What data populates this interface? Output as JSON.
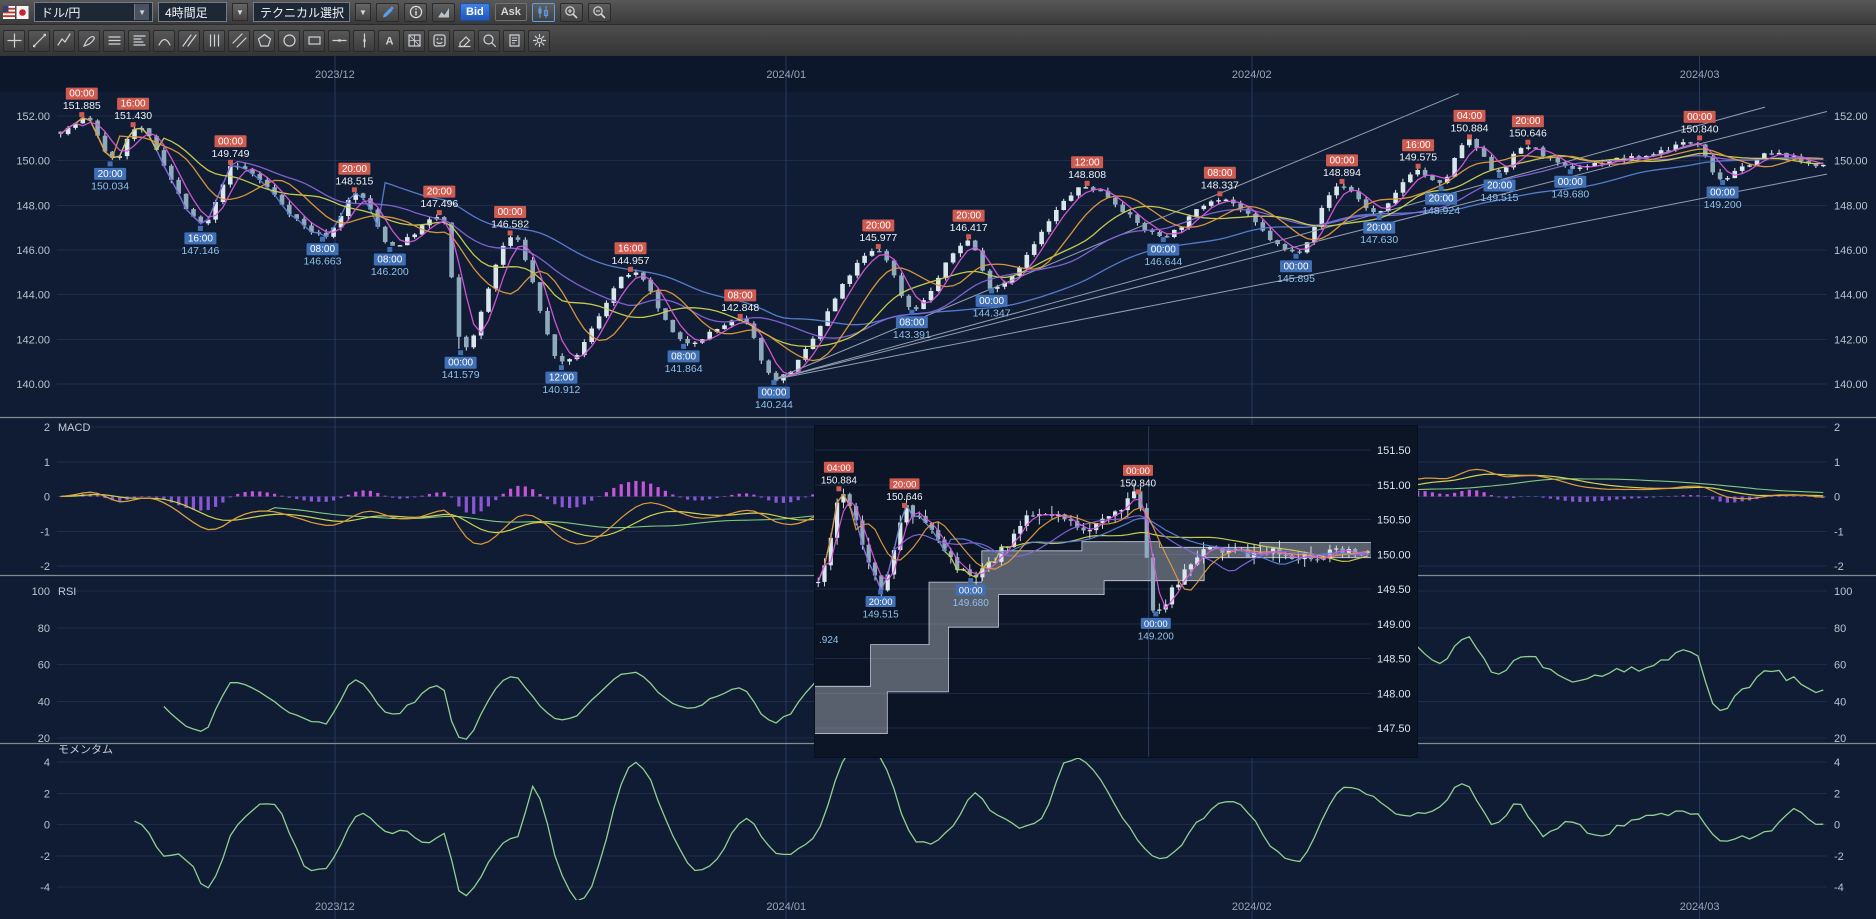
{
  "toolbar": {
    "pair_selector": {
      "value": "ドル/円",
      "flag": "us-jp-flag"
    },
    "timeframe_selector": {
      "value": "4時間足"
    },
    "technical_selector": {
      "value": "テクニカル選択"
    },
    "bid_label": "Bid",
    "ask_label": "Ask",
    "icon_buttons": [
      "draw-pencil",
      "info",
      "area-chart",
      "candle-chart",
      "zoom-in",
      "zoom-out"
    ]
  },
  "drawing_toolbar": {
    "tools": [
      "crosshair",
      "trendline",
      "polyline",
      "freehand",
      "horizontal-grid",
      "fib-lines",
      "arc",
      "parallel-lines",
      "vertical-grid",
      "channel",
      "pentagon",
      "ellipse",
      "rectangle",
      "horizontal-line",
      "vertical-line",
      "text",
      "gann-grid",
      "icon-stamp",
      "eraser",
      "zoom-area",
      "note",
      "settings"
    ]
  },
  "colors": {
    "bg": "#0f1c33",
    "grid": "#1d2c49",
    "month_grid": "#27395c",
    "axis_text": "#b9c2cf",
    "date_text": "#9aa5b6",
    "title_text": "#c6ccd6",
    "candle_up": "#d9e7ed",
    "candle_down": "#8fa9bd",
    "candle_stroke": "#dfeaf0",
    "trend_line": "#93a0b2",
    "high_chip": "#cf5a50",
    "high_text": "#eef2f6",
    "low_chip": "#3f6fb5",
    "low_text": "#8fc1ea",
    "macd_hist_pos": "#c355d8",
    "macd_hist_neg": "#8a55d6",
    "macd_line": "#e09b3d",
    "macd_signal": "#cfd24e",
    "macd_slow": "#7fc97f",
    "rsi_line": "#8fd08f",
    "momentum_line": "#8fd08f",
    "divider": "#828a94",
    "cloud": "rgba(195,200,210,0.42)",
    "cloud_edge": "#c9ced6",
    "inset_bg": "#0b1526",
    "inset_axis_text": "#dde3ea"
  },
  "chart_data": {
    "type": "candlestick",
    "pair": "ドル/円",
    "timeframe": "4時間足",
    "x_axis": {
      "labels": [
        "2023/12",
        "2024/01",
        "2024/02",
        "2024/03"
      ],
      "positions": [
        0.157,
        0.412,
        0.675,
        0.928
      ]
    },
    "price_axis": {
      "ticks": [
        "152.00",
        "150.00",
        "148.00",
        "146.00",
        "144.00",
        "142.00",
        "140.00"
      ],
      "min": 139.2,
      "max": 152.9
    },
    "moving_averages": [
      {
        "color": "#5a7fd6",
        "window": 45
      },
      {
        "color": "#8565d8",
        "window": 25
      },
      {
        "color": "#cfd24e",
        "window": 15
      },
      {
        "color": "#e09b3d",
        "window": 9
      },
      {
        "color": "#d957d9",
        "window": 4
      }
    ],
    "trend_lines": [
      {
        "x1": 0.405,
        "p1": 140.2,
        "x2": 0.792,
        "p2": 153.0
      },
      {
        "x1": 0.405,
        "p1": 140.2,
        "x2": 0.965,
        "p2": 152.4
      },
      {
        "x1": 0.405,
        "p1": 140.2,
        "x2": 1.0,
        "p2": 152.2
      },
      {
        "x1": 0.405,
        "p1": 140.2,
        "x2": 1.0,
        "p2": 149.4
      }
    ],
    "swings": [
      {
        "x": 0.0,
        "price": 151.3
      },
      {
        "x": 0.014,
        "price": 151.885,
        "time": "00:00",
        "type": "high"
      },
      {
        "x": 0.03,
        "price": 150.034,
        "time": "20:00",
        "type": "low"
      },
      {
        "x": 0.043,
        "price": 151.43,
        "time": "16:00",
        "type": "high"
      },
      {
        "x": 0.081,
        "price": 147.146,
        "time": "16:00",
        "type": "low"
      },
      {
        "x": 0.098,
        "price": 149.749,
        "time": "00:00",
        "type": "high"
      },
      {
        "x": 0.15,
        "price": 146.663,
        "time": "08:00",
        "type": "low"
      },
      {
        "x": 0.168,
        "price": 148.515,
        "time": "20:00",
        "type": "high"
      },
      {
        "x": 0.188,
        "price": 146.2,
        "time": "08:00",
        "type": "low"
      },
      {
        "x": 0.216,
        "price": 147.496,
        "time": "20:00",
        "type": "high"
      },
      {
        "x": 0.228,
        "price": 141.579,
        "time": "00:00",
        "type": "low"
      },
      {
        "x": 0.256,
        "price": 146.582,
        "time": "00:00",
        "type": "high"
      },
      {
        "x": 0.285,
        "price": 140.912,
        "time": "12:00",
        "type": "low"
      },
      {
        "x": 0.324,
        "price": 144.957,
        "time": "16:00",
        "type": "high"
      },
      {
        "x": 0.354,
        "price": 141.864,
        "time": "08:00",
        "type": "low"
      },
      {
        "x": 0.386,
        "price": 142.848,
        "time": "08:00",
        "type": "high"
      },
      {
        "x": 0.405,
        "price": 140.244,
        "time": "00:00",
        "type": "low"
      },
      {
        "x": 0.464,
        "price": 145.977,
        "time": "20:00",
        "type": "high"
      },
      {
        "x": 0.483,
        "price": 143.391,
        "time": "08:00",
        "type": "low"
      },
      {
        "x": 0.515,
        "price": 146.417,
        "time": "20:00",
        "type": "high"
      },
      {
        "x": 0.528,
        "price": 144.347,
        "time": "00:00",
        "type": "low"
      },
      {
        "x": 0.582,
        "price": 148.808,
        "time": "12:00",
        "type": "high"
      },
      {
        "x": 0.625,
        "price": 146.644,
        "time": "00:00",
        "type": "low"
      },
      {
        "x": 0.657,
        "price": 148.337,
        "time": "08:00",
        "type": "high"
      },
      {
        "x": 0.7,
        "price": 145.895,
        "time": "00:00",
        "type": "low"
      },
      {
        "x": 0.726,
        "price": 148.894,
        "time": "00:00",
        "type": "high"
      },
      {
        "x": 0.747,
        "price": 147.63,
        "time": "20:00",
        "type": "low"
      },
      {
        "x": 0.769,
        "price": 149.575,
        "time": "16:00",
        "type": "high"
      },
      {
        "x": 0.782,
        "price": 148.924,
        "time": "20:00",
        "type": "low"
      },
      {
        "x": 0.798,
        "price": 150.884,
        "time": "04:00",
        "type": "high"
      },
      {
        "x": 0.815,
        "price": 149.515,
        "time": "20:00",
        "type": "low"
      },
      {
        "x": 0.831,
        "price": 150.646,
        "time": "20:00",
        "type": "high"
      },
      {
        "x": 0.855,
        "price": 149.68,
        "time": "00:00",
        "type": "low"
      },
      {
        "x": 0.89,
        "price": 150.1
      },
      {
        "x": 0.928,
        "price": 150.84,
        "time": "00:00",
        "type": "high"
      },
      {
        "x": 0.941,
        "price": 149.2,
        "time": "00:00",
        "type": "low"
      },
      {
        "x": 0.97,
        "price": 150.3
      },
      {
        "x": 1.0,
        "price": 149.8
      }
    ],
    "indicators": {
      "macd": {
        "title": "MACD",
        "axis_ticks": [
          "2",
          "1",
          "0",
          "-1",
          "-2"
        ],
        "range": [
          -2,
          2
        ]
      },
      "rsi": {
        "title": "RSI",
        "axis_ticks": [
          "100",
          "80",
          "60",
          "40",
          "20"
        ],
        "range": [
          0,
          100
        ]
      },
      "momentum": {
        "title": "モメンタム",
        "axis_ticks": [
          "4",
          "2",
          "0",
          "-2",
          "-4"
        ],
        "range": [
          -4,
          4
        ]
      }
    }
  },
  "inset_chart": {
    "type": "candlestick-ichimoku",
    "price_axis": {
      "ticks": [
        "151.50",
        "151.00",
        "150.50",
        "150.00",
        "149.50",
        "149.00",
        "148.50",
        "148.00",
        "147.50"
      ],
      "min": 147.3,
      "max": 151.7
    },
    "partial_label": ".924",
    "moving_averages": [
      {
        "color": "#cfd24e",
        "window": 32
      },
      {
        "color": "#5a7fd6",
        "window": 22
      },
      {
        "color": "#8565d8",
        "window": 14
      },
      {
        "color": "#e09b3d",
        "window": 7
      },
      {
        "color": "#d957d9",
        "window": 3
      }
    ],
    "swings": [
      {
        "x": 0.0,
        "price": 149.6
      },
      {
        "x": 0.043,
        "price": 150.884,
        "time": "04:00",
        "type": "high"
      },
      {
        "x": 0.118,
        "price": 149.515,
        "time": "20:00",
        "type": "low"
      },
      {
        "x": 0.161,
        "price": 150.646,
        "time": "20:00",
        "type": "high"
      },
      {
        "x": 0.28,
        "price": 149.68,
        "time": "00:00",
        "type": "low"
      },
      {
        "x": 0.4,
        "price": 150.55
      },
      {
        "x": 0.5,
        "price": 150.4
      },
      {
        "x": 0.581,
        "price": 150.84,
        "time": "00:00",
        "type": "high"
      },
      {
        "x": 0.613,
        "price": 149.2,
        "time": "00:00",
        "type": "low"
      },
      {
        "x": 0.7,
        "price": 150.05
      },
      {
        "x": 0.85,
        "price": 150.0
      },
      {
        "x": 1.0,
        "price": 150.0
      }
    ],
    "cloud": {
      "upper": [
        [
          0,
          148.1
        ],
        [
          0.1,
          148.1
        ],
        [
          0.1,
          148.7
        ],
        [
          0.205,
          148.7
        ],
        [
          0.205,
          149.6
        ],
        [
          0.3,
          149.6
        ],
        [
          0.3,
          150.05
        ],
        [
          0.48,
          150.05
        ],
        [
          0.48,
          150.18
        ],
        [
          0.62,
          150.18
        ],
        [
          0.62,
          150.1
        ],
        [
          0.8,
          150.1
        ],
        [
          0.8,
          150.17
        ],
        [
          1,
          150.17
        ]
      ],
      "lower": [
        [
          0,
          147.42
        ],
        [
          0.13,
          147.42
        ],
        [
          0.13,
          148.02
        ],
        [
          0.24,
          148.02
        ],
        [
          0.24,
          148.95
        ],
        [
          0.33,
          148.95
        ],
        [
          0.33,
          149.42
        ],
        [
          0.52,
          149.42
        ],
        [
          0.52,
          149.62
        ],
        [
          0.7,
          149.62
        ],
        [
          0.7,
          149.95
        ],
        [
          1,
          149.95
        ]
      ]
    },
    "vertical_gridline_x": 0.6
  }
}
